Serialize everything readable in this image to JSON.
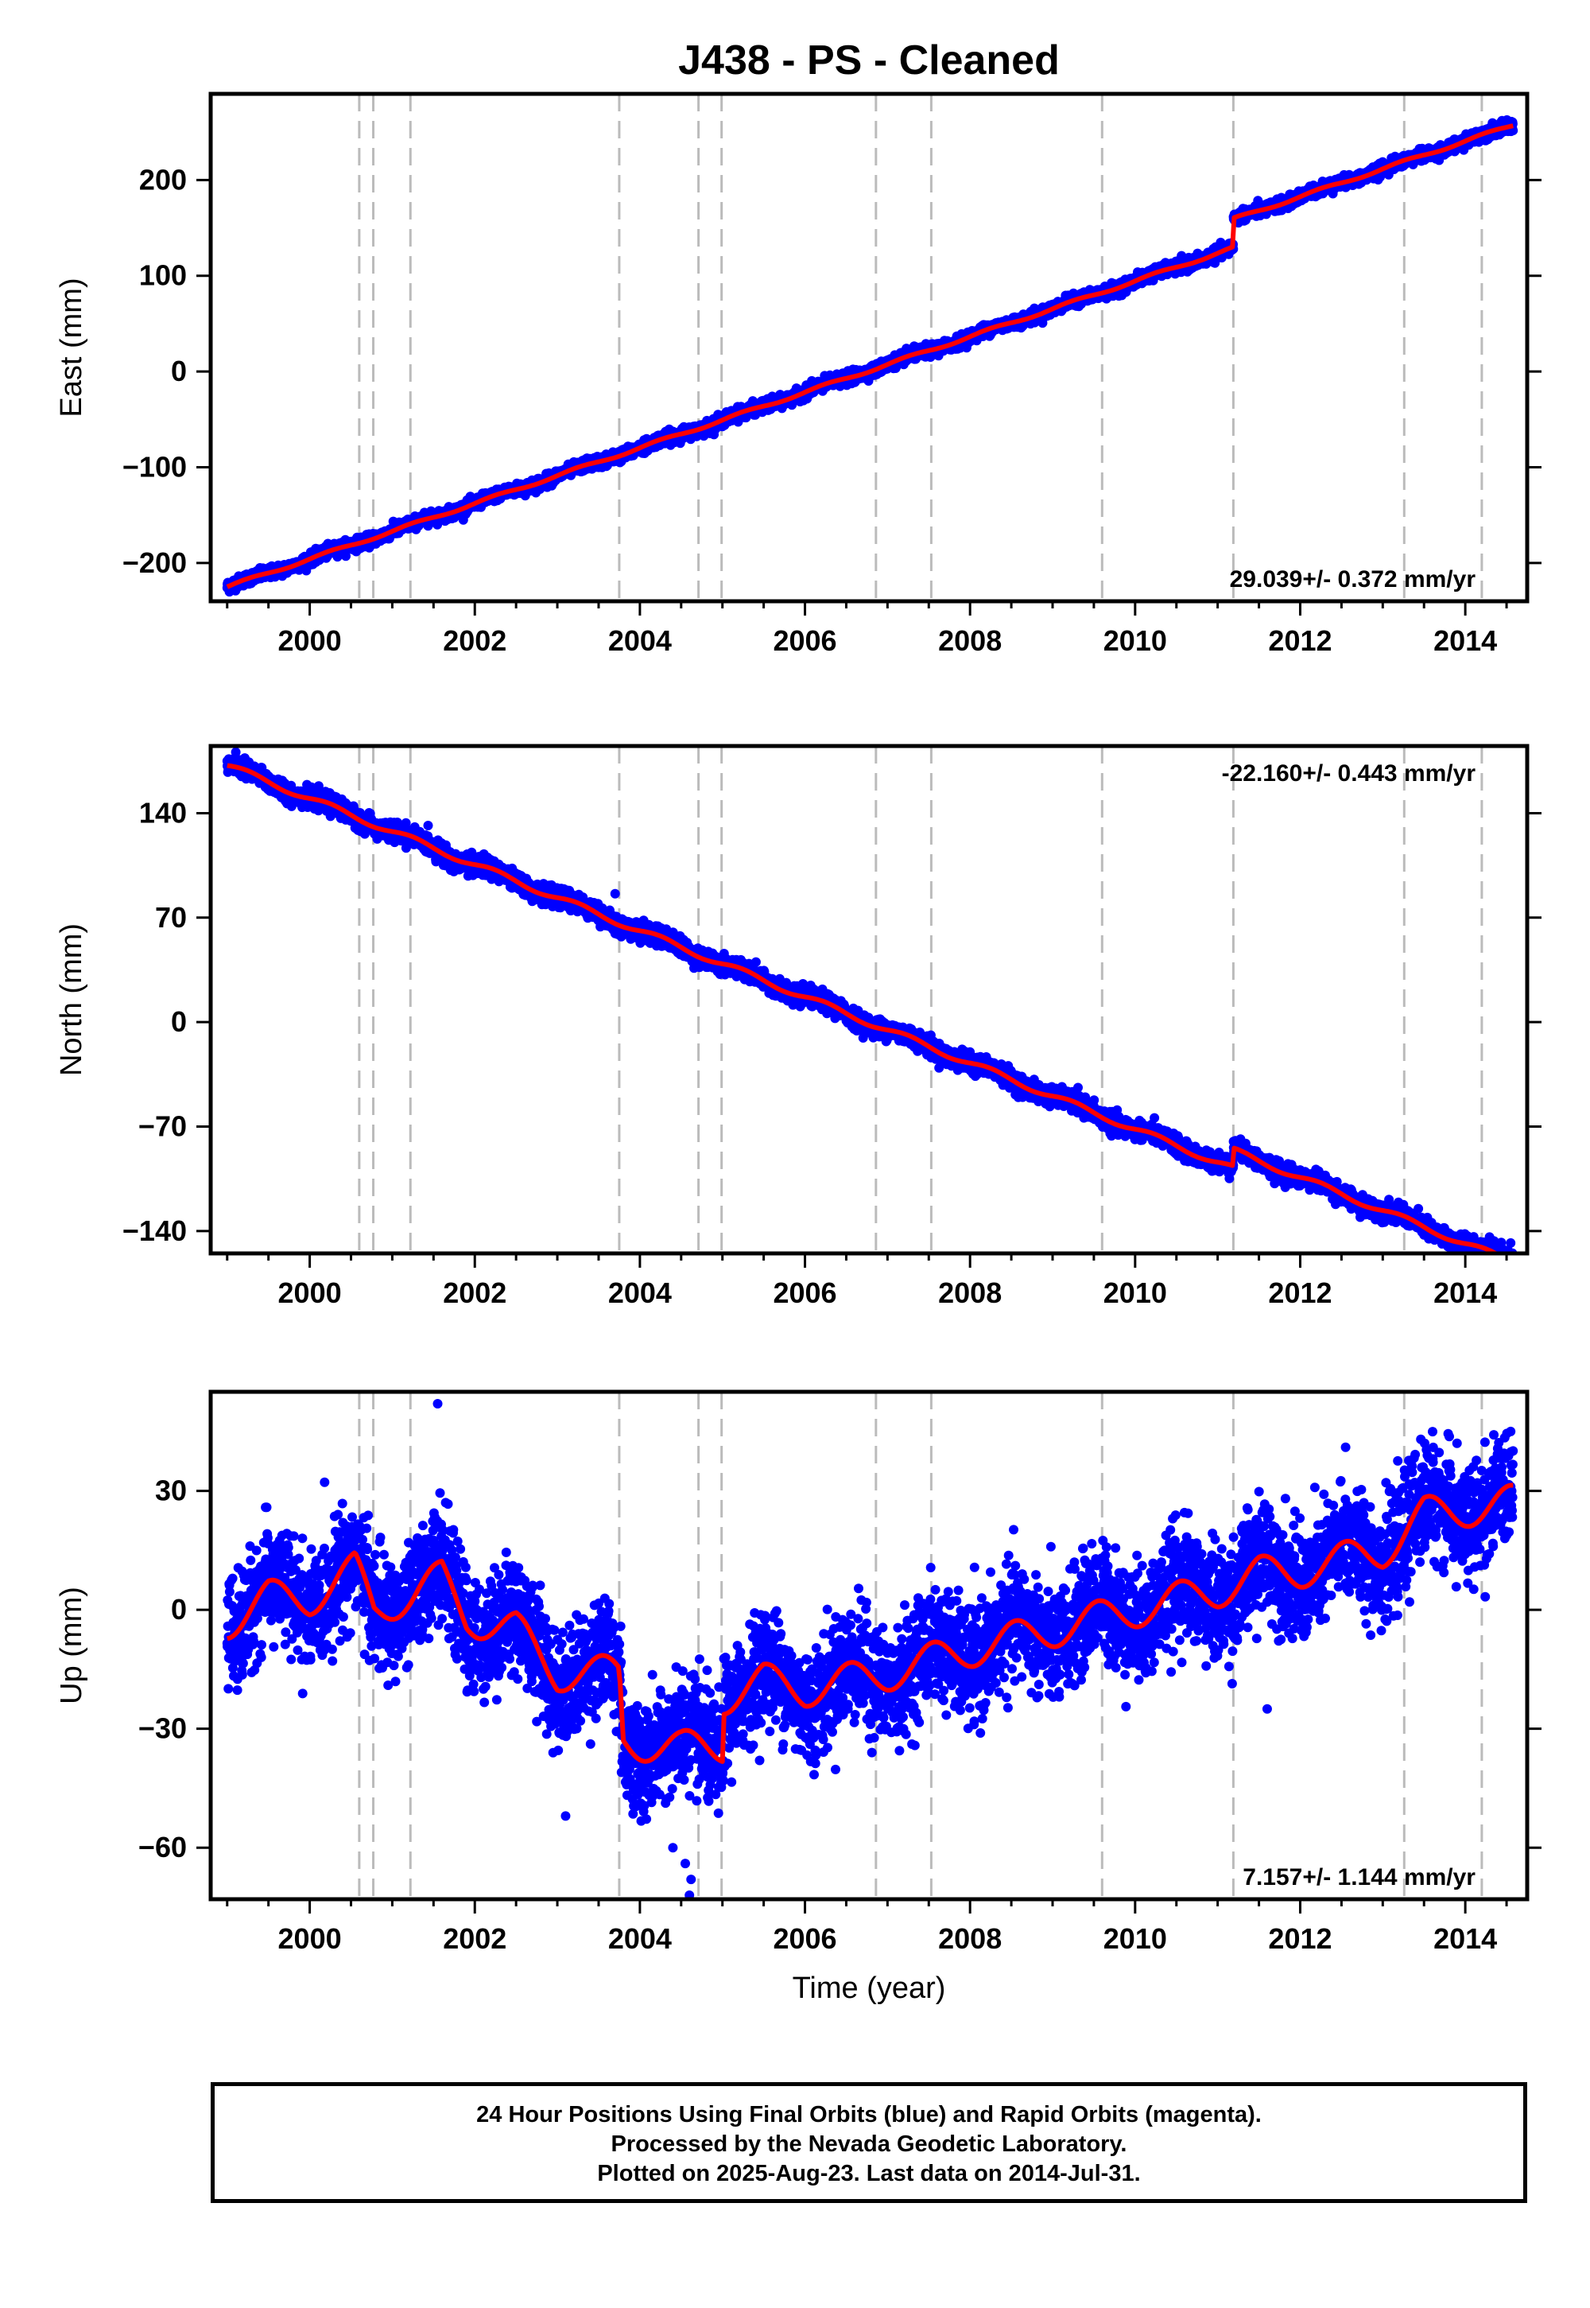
{
  "title": "J438  - PS - Cleaned",
  "xlabel": "Time (year)",
  "footer": {
    "line1": "24 Hour Positions Using Final Orbits (blue) and Rapid Orbits (magenta).",
    "line2": "Processed by the Nevada Geodetic Laboratory.",
    "line3": "Plotted on 2025-Aug-23. Last data on 2014-Jul-31."
  },
  "colors": {
    "data_points": "#0000ff",
    "model_line": "#ff0000",
    "event_lines": "#bbbbbb",
    "frame": "#000000"
  },
  "chart_data": [
    {
      "type": "scatter",
      "ylabel": "East (mm)",
      "xlim": [
        1998.8,
        2014.75
      ],
      "ylim": [
        -240,
        290
      ],
      "yticks": [
        -200,
        -100,
        0,
        100,
        200
      ],
      "xticks": [
        2000,
        2002,
        2004,
        2006,
        2008,
        2010,
        2012,
        2014
      ],
      "rate_label": "29.039+/- 0.372 mm/yr",
      "rate_position": "bottom-right",
      "event_lines": [
        2000.6,
        2000.77,
        2001.22,
        2003.75,
        2004.71,
        2004.99,
        2006.86,
        2007.53,
        2009.6,
        2011.19,
        2013.26,
        2014.2
      ],
      "model": {
        "start_year": 1999.0,
        "end_year": 2014.58,
        "start_value": -225,
        "rate": 29.04,
        "seasonal_amp": 1.5,
        "offsets": [
          [
            2011.19,
            30
          ]
        ]
      },
      "noise": 3,
      "outliers": []
    },
    {
      "type": "scatter",
      "ylabel": "North (mm)",
      "xlim": [
        1998.8,
        2014.75
      ],
      "ylim": [
        -155,
        185
      ],
      "yticks": [
        -140,
        -70,
        0,
        70,
        140
      ],
      "xticks": [
        2000,
        2002,
        2004,
        2006,
        2008,
        2010,
        2012,
        2014
      ],
      "rate_label": "-22.160+/- 0.443 mm/yr",
      "rate_position": "top-right",
      "event_lines": [
        2000.6,
        2000.77,
        2001.22,
        2003.75,
        2004.71,
        2004.99,
        2006.86,
        2007.53,
        2009.6,
        2011.19,
        2013.26,
        2014.2
      ],
      "model": {
        "start_year": 1999.0,
        "end_year": 2014.58,
        "start_value": 172,
        "rate": -22.16,
        "seasonal_amp": 2.0,
        "offsets": [
          [
            2011.19,
            12
          ]
        ]
      },
      "noise": 3,
      "outliers": [
        [
          2003.7,
          86
        ],
        [
          2014.55,
          -148
        ]
      ]
    },
    {
      "type": "scatter",
      "ylabel": "Up (mm)",
      "xlim": [
        1998.8,
        2014.75
      ],
      "ylim": [
        -73,
        55
      ],
      "yticks": [
        -60,
        -30,
        0,
        30
      ],
      "xticks": [
        2000,
        2002,
        2004,
        2006,
        2008,
        2010,
        2012,
        2014
      ],
      "rate_label": "7.157+/- 1.144 mm/yr",
      "rate_position": "bottom-right",
      "event_lines": [
        2000.6,
        2000.77,
        2001.22,
        2003.75,
        2004.71,
        2004.99,
        2006.86,
        2007.53,
        2009.6,
        2011.19,
        2013.26,
        2014.2
      ],
      "trend_knots": [
        [
          1999.0,
          -3
        ],
        [
          1999.5,
          3
        ],
        [
          2000.0,
          3
        ],
        [
          2000.55,
          10
        ],
        [
          2000.78,
          0
        ],
        [
          2001.25,
          4
        ],
        [
          2001.6,
          8
        ],
        [
          2001.9,
          -2
        ],
        [
          2002.5,
          -5
        ],
        [
          2003.0,
          -16
        ],
        [
          2003.75,
          -16
        ],
        [
          2003.8,
          -33
        ],
        [
          2004.5,
          -35
        ],
        [
          2005.0,
          -34
        ],
        [
          2005.01,
          -22
        ],
        [
          2005.5,
          -18
        ],
        [
          2006.0,
          -20
        ],
        [
          2007.0,
          -16
        ],
        [
          2008.0,
          -10
        ],
        [
          2009.0,
          -5
        ],
        [
          2010.0,
          0
        ],
        [
          2011.0,
          5
        ],
        [
          2011.5,
          9
        ],
        [
          2012.0,
          10
        ],
        [
          2013.0,
          15
        ],
        [
          2013.5,
          24
        ],
        [
          2014.58,
          27
        ]
      ],
      "seasonal_amp": 4.5,
      "noise": 7,
      "outliers": [
        [
          2001.55,
          52
        ],
        [
          2004.55,
          -64
        ],
        [
          2004.62,
          -68
        ],
        [
          2004.6,
          -72
        ],
        [
          2004.4,
          -60
        ],
        [
          2003.1,
          -52
        ],
        [
          2011.6,
          -25
        ],
        [
          2014.55,
          45
        ],
        [
          2012.55,
          41
        ],
        [
          2013.9,
          42
        ]
      ]
    }
  ]
}
